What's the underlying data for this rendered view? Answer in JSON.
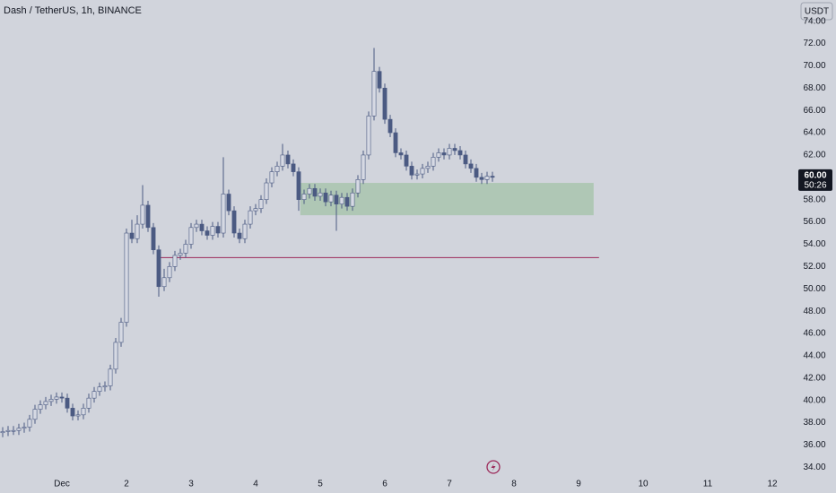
{
  "chart_data": {
    "type": "candlestick",
    "title": "Dash / TetherUS, 1h, BINANCE",
    "currency_button": "USDT",
    "last_price": {
      "value": 60,
      "label": "60.00"
    },
    "countdown": "50:26",
    "up_color": "#d6d9e3",
    "down_color": "#4b5a82",
    "wick_color": "#4b5a82",
    "xlim": [
      0,
      148
    ],
    "xticks": [
      {
        "value": 11.5,
        "label": "Dec"
      },
      {
        "value": 23.5,
        "label": "2"
      },
      {
        "value": 35.5,
        "label": "3"
      },
      {
        "value": 47.5,
        "label": "4"
      },
      {
        "value": 59.5,
        "label": "5"
      },
      {
        "value": 71.5,
        "label": "6"
      },
      {
        "value": 83.5,
        "label": "7"
      },
      {
        "value": 95.5,
        "label": "8"
      },
      {
        "value": 107.5,
        "label": "9"
      },
      {
        "value": 119.5,
        "label": "10"
      },
      {
        "value": 131.5,
        "label": "11"
      },
      {
        "value": 143.5,
        "label": "12"
      }
    ],
    "ylim": [
      33.3,
      75.9
    ],
    "yticks": [
      {
        "value": 34,
        "label": "34.00"
      },
      {
        "value": 36,
        "label": "36.00"
      },
      {
        "value": 38,
        "label": "38.00"
      },
      {
        "value": 40,
        "label": "40.00"
      },
      {
        "value": 42,
        "label": "42.00"
      },
      {
        "value": 44,
        "label": "44.00"
      },
      {
        "value": 46,
        "label": "46.00"
      },
      {
        "value": 48,
        "label": "48.00"
      },
      {
        "value": 50,
        "label": "50.00"
      },
      {
        "value": 52,
        "label": "52.00"
      },
      {
        "value": 54,
        "label": "54.00"
      },
      {
        "value": 56,
        "label": "56.00"
      },
      {
        "value": 58,
        "label": "58.00"
      },
      {
        "value": 62,
        "label": "62.00"
      },
      {
        "value": 64,
        "label": "64.00"
      },
      {
        "value": 66,
        "label": "66.00"
      },
      {
        "value": 68,
        "label": "68.00"
      },
      {
        "value": 70,
        "label": "70.00"
      },
      {
        "value": 72,
        "label": "72.00"
      },
      {
        "value": 74,
        "label": "74.00"
      }
    ],
    "zone": {
      "x": [
        55.8,
        110.3
      ],
      "y": [
        56.6,
        59.5
      ],
      "color": "#a9c4ae"
    },
    "level": {
      "x": [
        29.7,
        111.3
      ],
      "y": 52.8,
      "color": "#9c2a5a"
    },
    "open": [
      37.1,
      37.2,
      37.3,
      37.3,
      37.5,
      37.6,
      38.3,
      39.2,
      39.6,
      39.9,
      40.1,
      40.3,
      40.2,
      39.3,
      38.6,
      38.7,
      39.3,
      40.2,
      40.8,
      41.2,
      41.3,
      42.8,
      45.2,
      47.0,
      55.0,
      54.5,
      55.8,
      57.5,
      55.5,
      53.5,
      50.2,
      51.0,
      52.0,
      53.0,
      53.2,
      54.0,
      55.5,
      55.8,
      55.2,
      54.8,
      55.6,
      55.0,
      58.5,
      57.0,
      55.0,
      54.5,
      55.8,
      57.0,
      57.2,
      58.0,
      59.5,
      60.5,
      61.0,
      62.0,
      61.2,
      60.5,
      58.0,
      58.5,
      59.0,
      58.3,
      58.6,
      57.8,
      58.4,
      57.6,
      58.2,
      57.4,
      58.6,
      59.8,
      62.0,
      65.5,
      69.5,
      68.0,
      65.2,
      64.0,
      62.2,
      62.0,
      61.0,
      60.2,
      60.3,
      60.8,
      61.0,
      61.8,
      62.2,
      62.0,
      62.6,
      62.4,
      62.0,
      61.2,
      60.8,
      60.0,
      59.8,
      60.1
    ],
    "high": [
      37.6,
      37.7,
      37.7,
      37.9,
      38.0,
      38.7,
      39.6,
      40.0,
      40.3,
      40.5,
      40.7,
      40.7,
      40.6,
      39.7,
      39.1,
      39.7,
      40.6,
      41.2,
      41.6,
      41.7,
      43.2,
      45.6,
      47.4,
      55.4,
      56.2,
      56.6,
      59.3,
      57.9,
      55.9,
      53.9,
      51.8,
      52.4,
      53.4,
      53.6,
      54.4,
      55.9,
      56.2,
      56.2,
      55.6,
      56.0,
      56.0,
      61.8,
      58.9,
      57.4,
      55.4,
      56.2,
      57.4,
      57.6,
      58.4,
      59.9,
      60.9,
      61.4,
      63.0,
      62.4,
      61.6,
      60.9,
      58.9,
      59.4,
      59.4,
      59.0,
      59.0,
      58.8,
      58.8,
      58.6,
      58.6,
      59.0,
      60.2,
      62.4,
      65.9,
      71.6,
      69.9,
      68.4,
      65.6,
      64.4,
      62.6,
      62.4,
      61.4,
      60.7,
      61.2,
      61.4,
      62.2,
      62.6,
      62.6,
      63.0,
      63.0,
      62.8,
      62.4,
      61.6,
      61.2,
      60.4,
      60.5,
      60.5
    ],
    "low": [
      36.7,
      36.8,
      36.9,
      36.9,
      37.1,
      37.2,
      37.9,
      38.8,
      39.2,
      39.5,
      39.7,
      39.8,
      38.9,
      38.2,
      38.2,
      38.3,
      38.9,
      39.8,
      40.4,
      40.8,
      40.9,
      42.4,
      44.8,
      46.6,
      54.1,
      54.1,
      55.4,
      55.1,
      53.1,
      49.3,
      49.8,
      50.6,
      51.6,
      52.6,
      52.8,
      53.6,
      55.1,
      54.8,
      54.4,
      54.4,
      54.6,
      54.6,
      56.6,
      54.6,
      54.1,
      54.1,
      55.4,
      56.6,
      56.8,
      57.6,
      59.1,
      60.1,
      60.6,
      60.8,
      60.1,
      57.0,
      57.6,
      58.1,
      57.9,
      57.9,
      57.4,
      57.4,
      55.2,
      57.2,
      57.0,
      57.0,
      58.2,
      59.4,
      61.6,
      65.1,
      67.6,
      64.8,
      63.6,
      61.8,
      61.6,
      60.6,
      59.8,
      59.8,
      59.9,
      60.4,
      60.6,
      61.4,
      61.6,
      61.6,
      62.0,
      61.6,
      60.8,
      60.4,
      59.6,
      59.4,
      59.4,
      59.6
    ],
    "close": [
      37.2,
      37.3,
      37.3,
      37.5,
      37.6,
      38.3,
      39.2,
      39.6,
      39.9,
      40.1,
      40.3,
      40.2,
      39.3,
      38.6,
      38.7,
      39.3,
      40.2,
      40.8,
      41.2,
      41.3,
      42.8,
      45.2,
      47.0,
      55.0,
      54.5,
      55.8,
      57.5,
      55.5,
      53.5,
      50.2,
      51.0,
      52.0,
      53.0,
      53.2,
      54.0,
      55.5,
      55.8,
      55.2,
      54.8,
      55.6,
      55.0,
      58.5,
      57.0,
      55.0,
      54.5,
      55.8,
      57.0,
      57.2,
      58.0,
      59.5,
      60.5,
      61.0,
      62.0,
      61.2,
      60.5,
      58.0,
      58.5,
      59.0,
      58.3,
      58.6,
      57.8,
      58.4,
      57.6,
      58.2,
      57.4,
      58.6,
      59.8,
      62.0,
      65.5,
      69.5,
      68.0,
      65.2,
      64.0,
      62.2,
      62.0,
      61.0,
      60.2,
      60.3,
      60.8,
      61.0,
      61.8,
      62.2,
      62.0,
      62.6,
      62.4,
      62.0,
      61.2,
      60.8,
      60.0,
      59.8,
      60.1,
      60.0
    ]
  }
}
